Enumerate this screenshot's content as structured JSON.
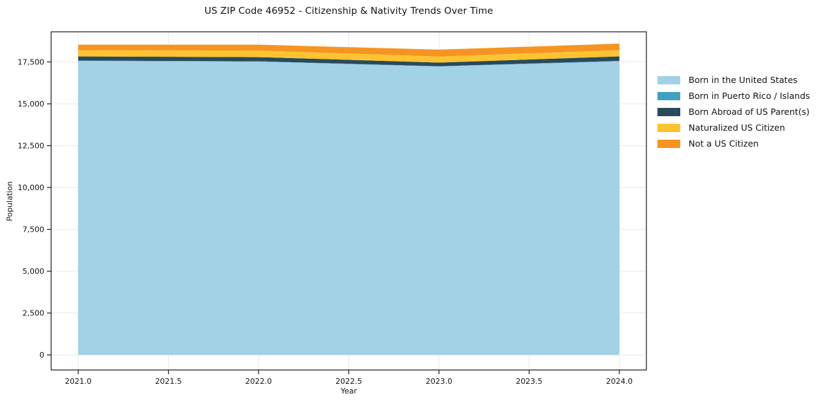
{
  "title": "US ZIP Code 46952 - Citizenship & Nativity Trends Over Time",
  "chart_data": {
    "type": "area",
    "stacked": true,
    "title": "US ZIP Code 46952 - Citizenship & Nativity Trends Over Time",
    "xlabel": "Year",
    "ylabel": "Population",
    "x": [
      2021,
      2022,
      2023,
      2024
    ],
    "series": [
      {
        "name": "Born in the United States",
        "color": "#a3d1e6",
        "values": [
          17560,
          17520,
          17230,
          17540
        ]
      },
      {
        "name": "Born in Puerto Rico / Islands",
        "color": "#42a1c2",
        "values": [
          20,
          20,
          15,
          30
        ]
      },
      {
        "name": "Born Abroad of US Parent(s)",
        "color": "#294a5b",
        "values": [
          250,
          250,
          215,
          265
        ]
      },
      {
        "name": "Naturalized US Citizen",
        "color": "#fdc331",
        "values": [
          370,
          390,
          365,
          370
        ]
      },
      {
        "name": "Not a US Citizen",
        "color": "#f69422",
        "values": [
          330,
          350,
          410,
          390
        ]
      }
    ],
    "xticks": [
      2021.0,
      2021.5,
      2022.0,
      2022.5,
      2023.0,
      2023.5,
      2024.0
    ],
    "xtick_labels": [
      "2021.0",
      "2021.5",
      "2022.0",
      "2022.5",
      "2023.0",
      "2023.5",
      "2024.0"
    ],
    "yticks": [
      0,
      2500,
      5000,
      7500,
      10000,
      12500,
      15000,
      17500
    ],
    "ytick_labels": [
      "0",
      "2,500",
      "5,000",
      "7,500",
      "10,000",
      "12,500",
      "15,000",
      "17,500"
    ],
    "xlim": [
      2020.85,
      2024.15
    ],
    "ylim": [
      -900,
      19300
    ],
    "grid": true,
    "grid_color": "#e9e9e9",
    "spine_color": "#1a1a1a",
    "legend_position": "outside-right"
  }
}
